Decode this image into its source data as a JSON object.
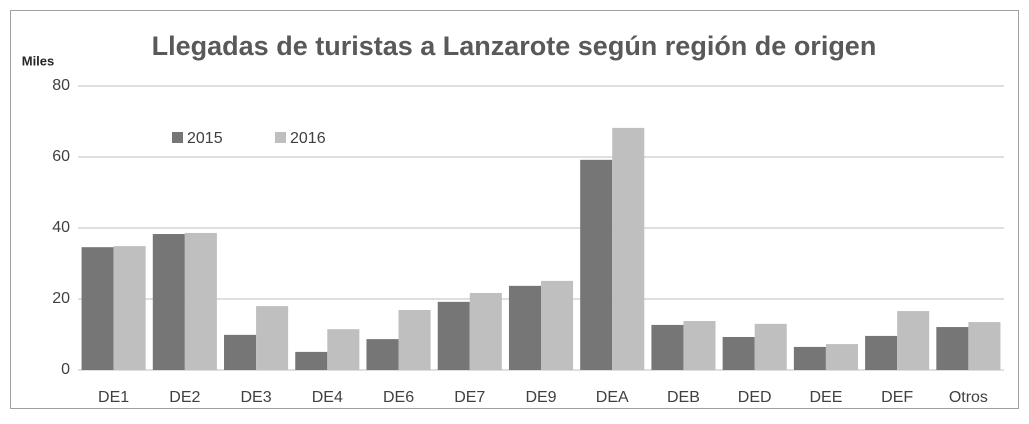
{
  "chart_data": {
    "type": "bar",
    "title": "Llegadas de turistas a Lanzarote según región de origen",
    "ylabel": "Miles",
    "categories": [
      "DE1",
      "DE2",
      "DE3",
      "DE4",
      "DE6",
      "DE7",
      "DE9",
      "DEA",
      "DEB",
      "DED",
      "DEE",
      "DEF",
      "Otros"
    ],
    "series": [
      {
        "name": "2015",
        "color": "#767676",
        "values": [
          34.6,
          38.3,
          9.9,
          5.1,
          8.7,
          19.2,
          23.7,
          59.2,
          12.7,
          9.3,
          6.5,
          9.6,
          12.1
        ]
      },
      {
        "name": "2016",
        "color": "#bfbfbf",
        "values": [
          34.9,
          38.6,
          18.0,
          11.5,
          16.9,
          21.7,
          25.1,
          68.2,
          13.8,
          13.0,
          7.3,
          16.6,
          13.5
        ]
      }
    ],
    "ylim": [
      0,
      80
    ],
    "yticks": [
      0,
      20,
      40,
      60,
      80
    ],
    "grid": true,
    "legend": "top-left"
  }
}
